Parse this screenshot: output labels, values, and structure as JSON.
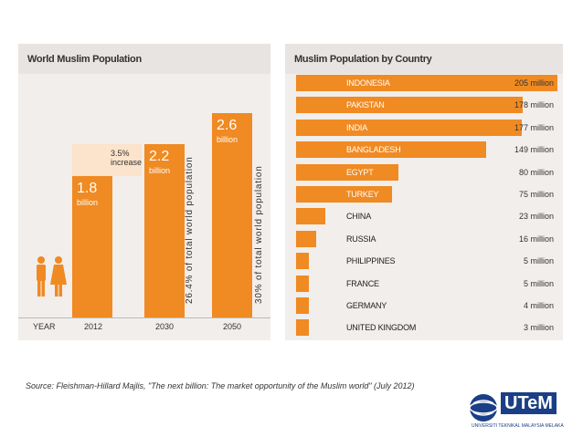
{
  "left": {
    "title": "World Muslim Population",
    "year_label": "YEAR",
    "increase_label": [
      "3.5%",
      "increase"
    ],
    "pct_labels": [
      "26.4% of total world population",
      "30% of total world population"
    ]
  },
  "right": {
    "title": "Muslim Population by Country"
  },
  "chart_data": [
    {
      "type": "bar",
      "title": "World Muslim Population",
      "xlabel": "YEAR",
      "categories": [
        "2012",
        "2030",
        "2050"
      ],
      "values": [
        1.8,
        2.2,
        2.6
      ],
      "value_labels": [
        "1.8",
        "2.2",
        "2.6"
      ],
      "unit": "billion",
      "ylim": [
        0,
        2.6
      ]
    },
    {
      "type": "bar",
      "orientation": "horizontal",
      "title": "Muslim Population by Country",
      "categories": [
        "INDONESIA",
        "PAKISTAN",
        "INDIA",
        "BANGLADESH",
        "EGYPT",
        "TURKEY",
        "CHINA",
        "RUSSIA",
        "PHILIPPINES",
        "FRANCE",
        "GERMANY",
        "UNITED KINGDOM"
      ],
      "values": [
        205,
        178,
        177,
        149,
        80,
        75,
        23,
        16,
        5,
        5,
        4,
        3
      ],
      "value_labels": [
        "205 million",
        "178 million",
        "177 million",
        "149 million",
        "80 million",
        "75 million",
        "23 million",
        "16 million",
        "5 million",
        "5 million",
        "4 million",
        "3 million"
      ]
    }
  ],
  "colors": {
    "bar": "#f08a22",
    "increase": "#fbe3cc",
    "panel": "#f1eeec"
  },
  "source": "Source: Fleishman-Hillard Majlis, \"The next billion: The market opportunity of the Muslim world\" (July 2012)",
  "logo": {
    "text": "UTeM",
    "subtitle": "UNIVERSITI TEKNIKAL MALAYSIA MELAKA"
  }
}
